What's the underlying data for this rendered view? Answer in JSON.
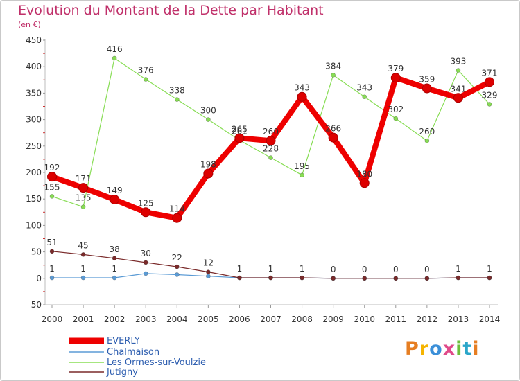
{
  "header": {
    "title": "Evolution du Montant de la Dette par Habitant",
    "unit": "(en €)"
  },
  "brand": {
    "logo_text": "Proxiti",
    "colors": [
      "#e67e22",
      "#f5b400",
      "#3b8fd8",
      "#e04a8a",
      "#6dbf3a",
      "#2aa6c9",
      "#e67e22"
    ]
  },
  "chart_data": {
    "type": "line",
    "title": "Evolution du Montant de la Dette par Habitant",
    "unit_label": "(en €)",
    "xlabel": "",
    "ylabel": "",
    "categories": [
      "2000",
      "2001",
      "2002",
      "2003",
      "2004",
      "2005",
      "2006",
      "2007",
      "2008",
      "2009",
      "2010",
      "2011",
      "2012",
      "2013",
      "2014"
    ],
    "ylim": [
      -50,
      450
    ],
    "yticks": [
      -50,
      0,
      50,
      100,
      150,
      200,
      250,
      300,
      350,
      400,
      450
    ],
    "grid": false,
    "legend_position": "bottom-left",
    "series": [
      {
        "name": "EVERLY",
        "color": "#ee0000",
        "values": [
          192,
          171,
          149,
          125,
          114,
          198,
          265,
          260,
          343,
          266,
          180,
          379,
          359,
          341,
          371
        ],
        "labels": [
          "192",
          "171",
          "149",
          "125",
          "114",
          "198",
          "265",
          "260",
          "343",
          "266",
          "180",
          "379",
          "359",
          "341",
          "371"
        ]
      },
      {
        "name": "Chalmaison",
        "color": "#5b9bd5",
        "values": [
          1,
          1,
          1,
          9,
          7,
          4,
          1,
          1,
          1,
          0,
          0,
          0,
          0,
          1,
          1
        ],
        "labels": [
          "1",
          "1",
          "1",
          "",
          "",
          "",
          "",
          "",
          "",
          "",
          "",
          "",
          "",
          "",
          ""
        ]
      },
      {
        "name": "Les Ormes-sur-Voulzie",
        "color": "#88dd55",
        "values": [
          155,
          135,
          416,
          376,
          338,
          300,
          261,
          228,
          195,
          384,
          343,
          302,
          260,
          393,
          329
        ],
        "segments": [
          [
            0,
            1
          ],
          [
            1,
            8
          ],
          [
            8,
            14
          ]
        ],
        "labels": [
          "155",
          "135",
          "416",
          "376",
          "338",
          "300",
          "261",
          "228",
          "195",
          "384",
          "343",
          "302",
          "260",
          "393",
          "329"
        ]
      },
      {
        "name": "Jutigny",
        "color": "#7a2a2a",
        "values": [
          51,
          45,
          38,
          30,
          22,
          12,
          1,
          1,
          1,
          0,
          0,
          0,
          0,
          1,
          1
        ],
        "labels": [
          "51",
          "45",
          "38",
          "30",
          "22",
          "12",
          "1",
          "1",
          "1",
          "0",
          "0",
          "0",
          "0",
          "1",
          "1"
        ]
      }
    ]
  }
}
